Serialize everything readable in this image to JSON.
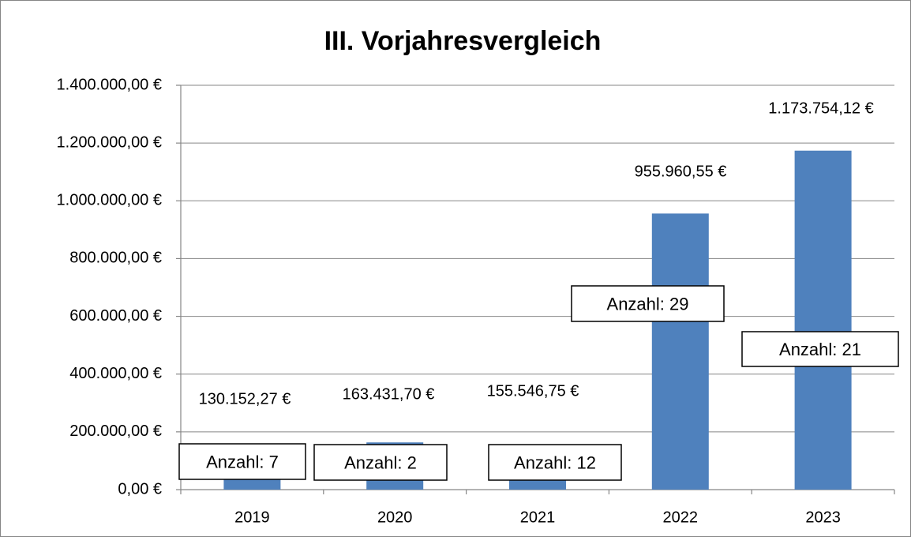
{
  "chart_data": {
    "type": "bar",
    "title": "III. Vorjahresvergleich",
    "categories": [
      "2019",
      "2020",
      "2021",
      "2022",
      "2023"
    ],
    "values": [
      130152.27,
      163431.7,
      155546.75,
      955960.55,
      1173754.12
    ],
    "value_labels": [
      "130.152,27 €",
      "163.431,70 €",
      "155.546,75 €",
      "955.960,55 €",
      "1.173.754,12 €"
    ],
    "annotations": [
      "Anzahl: 7",
      "Anzahl: 2",
      "Anzahl: 12",
      "Anzahl: 29",
      "Anzahl: 21"
    ],
    "color": "#4f81bd",
    "ylim": [
      0,
      1400000
    ],
    "yticks": [
      {
        "value": 0,
        "label": "0,00 €"
      },
      {
        "value": 200000,
        "label": "200.000,00 €"
      },
      {
        "value": 400000,
        "label": "400.000,00 €"
      },
      {
        "value": 600000,
        "label": "600.000,00 €"
      },
      {
        "value": 800000,
        "label": "800.000,00 €"
      },
      {
        "value": 1000000,
        "label": "1.000.000,00 €"
      },
      {
        "value": 1200000,
        "label": "1.200.000,00 €"
      },
      {
        "value": 1400000,
        "label": "1.400.000,00 €"
      }
    ],
    "grid": true
  }
}
